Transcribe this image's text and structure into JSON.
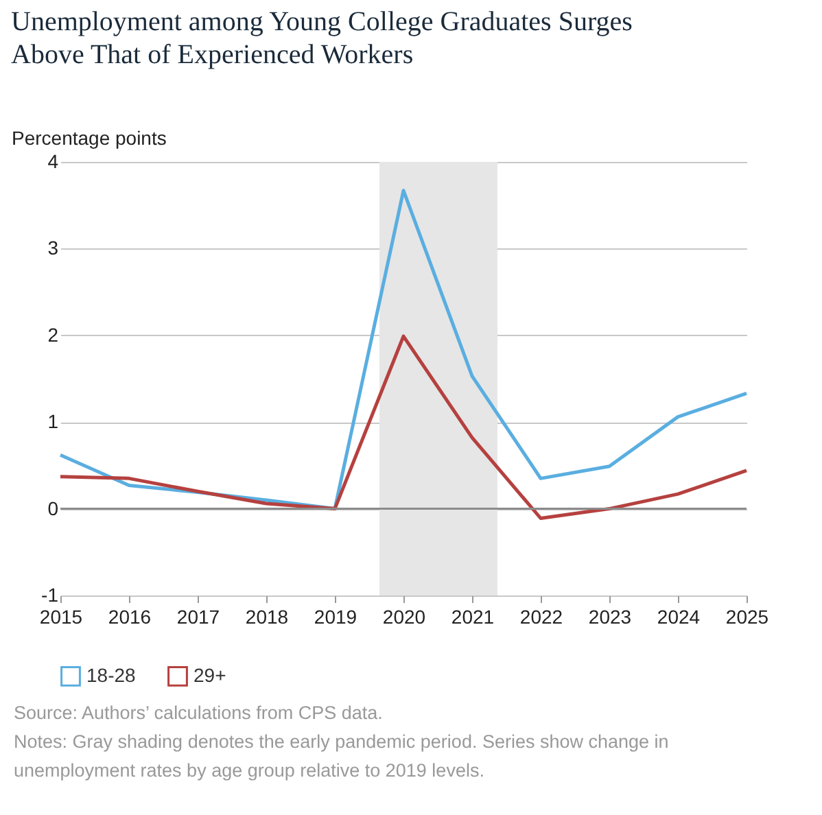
{
  "chart_data": {
    "type": "line",
    "title": "Unemployment among Young College Graduates Surges Above That of Experienced Workers",
    "ylabel": "Percentage points",
    "x": [
      2015,
      2016,
      2017,
      2018,
      2019,
      2020,
      2021,
      2022,
      2023,
      2024,
      2025
    ],
    "series": [
      {
        "name": "18-28",
        "color": "#5aaee0",
        "values": [
          0.62,
          0.27,
          0.19,
          0.1,
          0,
          3.67,
          1.53,
          0.35,
          0.49,
          1.06,
          1.33
        ]
      },
      {
        "name": "29+",
        "color": "#b5413f",
        "values": [
          0.37,
          0.35,
          0.2,
          0.06,
          0,
          1.99,
          0.82,
          -0.11,
          0,
          0.17,
          0.44
        ]
      }
    ],
    "xlim": [
      2015,
      2025
    ],
    "xticks": [
      2015,
      2016,
      2017,
      2018,
      2019,
      2020,
      2021,
      2022,
      2023,
      2024,
      2025
    ],
    "ylim": [
      -1,
      4
    ],
    "yticks": [
      -1,
      0,
      1,
      2,
      3,
      4
    ],
    "bands": [
      {
        "axis": "x",
        "from": 2019.65,
        "to": 2021.37,
        "color": "#e6e6e6"
      }
    ],
    "ref_lines": [
      {
        "axis": "y",
        "value": 0,
        "color": "#8c8c8c"
      }
    ],
    "grid": "y",
    "legend": "bottom",
    "annotations": [
      "Source: Authors’ calculations from CPS data.",
      "Notes: Gray shading denotes the early pandemic period. Series show change in unemployment rates by age group relative to 2019 levels."
    ]
  }
}
